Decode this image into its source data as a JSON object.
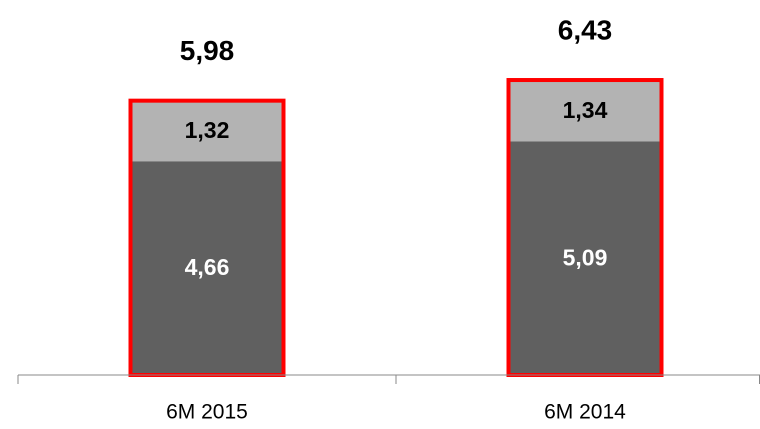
{
  "chart_data": {
    "type": "stacked-bar",
    "categories": [
      "6M 2015",
      "6M 2014"
    ],
    "series": [
      {
        "color": "#606060",
        "label_color": "#ffffff",
        "values": [
          4.66,
          5.09
        ],
        "value_labels": [
          "4,66",
          "5,09"
        ]
      },
      {
        "color": "#b3b3b3",
        "label_color": "#000000",
        "values": [
          1.32,
          1.34
        ],
        "value_labels": [
          "1,32",
          "1,34"
        ]
      }
    ],
    "totals": [
      5.98,
      6.43
    ],
    "total_labels": [
      "5,98",
      "6,43"
    ],
    "outline_color": "#ff0000",
    "ylim": [
      0,
      8
    ]
  }
}
